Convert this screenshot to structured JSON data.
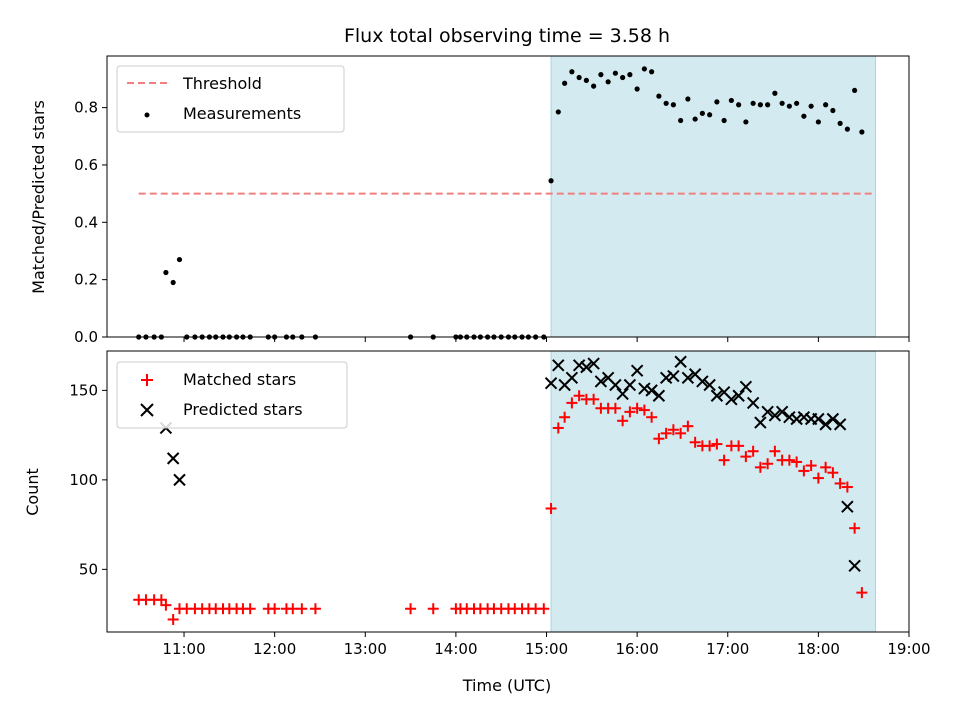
{
  "chart_data": {
    "title": "Flux total observing time = 3.58 h",
    "xlabel": "Time (UTC)",
    "xlim_hours": [
      10.15,
      19.0
    ],
    "xticks": [
      {
        "label": "11:00",
        "hour": 11
      },
      {
        "label": "12:00",
        "hour": 12
      },
      {
        "label": "13:00",
        "hour": 13
      },
      {
        "label": "14:00",
        "hour": 14
      },
      {
        "label": "15:00",
        "hour": 15
      },
      {
        "label": "16:00",
        "hour": 16
      },
      {
        "label": "17:00",
        "hour": 17
      },
      {
        "label": "18:00",
        "hour": 18
      },
      {
        "label": "19:00",
        "hour": 19
      }
    ],
    "shaded_interval_hours": [
      15.05,
      18.63
    ],
    "shade_color": "#d2eaf0",
    "panels": [
      {
        "type": "scatter",
        "ylabel": "Matched/Predicted stars",
        "ylim": [
          0,
          0.98
        ],
        "yticks": [
          {
            "label": "0.0",
            "value": 0.0
          },
          {
            "label": "0.2",
            "value": 0.2
          },
          {
            "label": "0.4",
            "value": 0.4
          },
          {
            "label": "0.6",
            "value": 0.6
          },
          {
            "label": "0.8",
            "value": 0.8
          }
        ],
        "legend": [
          "Threshold",
          "Measurements"
        ],
        "threshold": {
          "value": 0.5,
          "x_range": [
            10.5,
            18.63
          ],
          "color": "#f08080"
        },
        "series": [
          {
            "name": "Measurements",
            "marker": "dot",
            "color": "#000000",
            "points": [
              [
                10.5,
                0.0
              ],
              [
                10.58,
                0.0
              ],
              [
                10.67,
                0.0
              ],
              [
                10.75,
                0.0
              ],
              [
                10.8,
                0.225
              ],
              [
                10.88,
                0.19
              ],
              [
                10.95,
                0.27
              ],
              [
                11.03,
                0.0
              ],
              [
                11.12,
                0.0
              ],
              [
                11.2,
                0.0
              ],
              [
                11.28,
                0.0
              ],
              [
                11.35,
                0.0
              ],
              [
                11.43,
                0.0
              ],
              [
                11.5,
                0.0
              ],
              [
                11.58,
                0.0
              ],
              [
                11.65,
                0.0
              ],
              [
                11.73,
                0.0
              ],
              [
                11.93,
                0.0
              ],
              [
                12.0,
                0.0
              ],
              [
                12.13,
                0.0
              ],
              [
                12.2,
                0.0
              ],
              [
                12.3,
                0.0
              ],
              [
                12.45,
                0.0
              ],
              [
                13.5,
                0.0
              ],
              [
                13.75,
                0.0
              ],
              [
                14.0,
                0.0
              ],
              [
                14.05,
                0.0
              ],
              [
                14.12,
                0.0
              ],
              [
                14.2,
                0.0
              ],
              [
                14.27,
                0.0
              ],
              [
                14.35,
                0.0
              ],
              [
                14.42,
                0.0
              ],
              [
                14.5,
                0.0
              ],
              [
                14.58,
                0.0
              ],
              [
                14.65,
                0.0
              ],
              [
                14.73,
                0.0
              ],
              [
                14.8,
                0.0
              ],
              [
                14.88,
                0.0
              ],
              [
                14.97,
                0.0
              ],
              [
                15.05,
                0.545
              ],
              [
                15.13,
                0.785
              ],
              [
                15.2,
                0.885
              ],
              [
                15.28,
                0.925
              ],
              [
                15.36,
                0.905
              ],
              [
                15.44,
                0.895
              ],
              [
                15.52,
                0.875
              ],
              [
                15.6,
                0.915
              ],
              [
                15.68,
                0.89
              ],
              [
                15.76,
                0.92
              ],
              [
                15.84,
                0.905
              ],
              [
                15.92,
                0.915
              ],
              [
                16.0,
                0.865
              ],
              [
                16.08,
                0.935
              ],
              [
                16.16,
                0.925
              ],
              [
                16.24,
                0.84
              ],
              [
                16.32,
                0.815
              ],
              [
                16.4,
                0.81
              ],
              [
                16.48,
                0.755
              ],
              [
                16.56,
                0.83
              ],
              [
                16.64,
                0.76
              ],
              [
                16.72,
                0.78
              ],
              [
                16.8,
                0.775
              ],
              [
                16.88,
                0.82
              ],
              [
                16.96,
                0.755
              ],
              [
                17.04,
                0.825
              ],
              [
                17.12,
                0.81
              ],
              [
                17.2,
                0.75
              ],
              [
                17.28,
                0.815
              ],
              [
                17.36,
                0.81
              ],
              [
                17.44,
                0.81
              ],
              [
                17.52,
                0.85
              ],
              [
                17.6,
                0.815
              ],
              [
                17.68,
                0.805
              ],
              [
                17.76,
                0.815
              ],
              [
                17.84,
                0.77
              ],
              [
                17.92,
                0.805
              ],
              [
                18.0,
                0.75
              ],
              [
                18.08,
                0.81
              ],
              [
                18.16,
                0.79
              ],
              [
                18.24,
                0.745
              ],
              [
                18.32,
                0.725
              ],
              [
                18.4,
                0.86
              ],
              [
                18.48,
                0.715
              ]
            ]
          }
        ]
      },
      {
        "type": "scatter",
        "ylabel": "Count",
        "ylim": [
          15,
          172
        ],
        "yticks": [
          {
            "label": "50",
            "value": 50
          },
          {
            "label": "100",
            "value": 100
          },
          {
            "label": "150",
            "value": 150
          }
        ],
        "legend": [
          "Matched stars",
          "Predicted stars"
        ],
        "series": [
          {
            "name": "Matched stars",
            "marker": "plus",
            "color": "#ff0000",
            "points": [
              [
                10.5,
                33
              ],
              [
                10.58,
                33
              ],
              [
                10.67,
                33
              ],
              [
                10.75,
                33
              ],
              [
                10.8,
                30
              ],
              [
                10.88,
                22
              ],
              [
                10.95,
                28
              ],
              [
                11.03,
                28
              ],
              [
                11.12,
                28
              ],
              [
                11.2,
                28
              ],
              [
                11.28,
                28
              ],
              [
                11.35,
                28
              ],
              [
                11.43,
                28
              ],
              [
                11.5,
                28
              ],
              [
                11.58,
                28
              ],
              [
                11.65,
                28
              ],
              [
                11.73,
                28
              ],
              [
                11.93,
                28
              ],
              [
                12.0,
                28
              ],
              [
                12.13,
                28
              ],
              [
                12.2,
                28
              ],
              [
                12.3,
                28
              ],
              [
                12.45,
                28
              ],
              [
                13.5,
                28
              ],
              [
                13.75,
                28
              ],
              [
                14.0,
                28
              ],
              [
                14.05,
                28
              ],
              [
                14.12,
                28
              ],
              [
                14.2,
                28
              ],
              [
                14.27,
                28
              ],
              [
                14.35,
                28
              ],
              [
                14.42,
                28
              ],
              [
                14.5,
                28
              ],
              [
                14.58,
                28
              ],
              [
                14.65,
                28
              ],
              [
                14.73,
                28
              ],
              [
                14.8,
                28
              ],
              [
                14.88,
                28
              ],
              [
                14.97,
                28
              ],
              [
                15.05,
                84
              ],
              [
                15.13,
                129
              ],
              [
                15.2,
                135
              ],
              [
                15.28,
                143
              ],
              [
                15.36,
                147
              ],
              [
                15.44,
                145
              ],
              [
                15.52,
                145
              ],
              [
                15.6,
                140
              ],
              [
                15.68,
                140
              ],
              [
                15.76,
                140
              ],
              [
                15.84,
                133
              ],
              [
                15.92,
                138
              ],
              [
                16.0,
                140
              ],
              [
                16.08,
                139
              ],
              [
                16.16,
                135
              ],
              [
                16.24,
                123
              ],
              [
                16.32,
                126
              ],
              [
                16.4,
                128
              ],
              [
                16.48,
                126
              ],
              [
                16.56,
                130
              ],
              [
                16.64,
                121
              ],
              [
                16.72,
                119
              ],
              [
                16.8,
                119
              ],
              [
                16.88,
                120
              ],
              [
                16.96,
                111
              ],
              [
                17.04,
                119
              ],
              [
                17.12,
                119
              ],
              [
                17.2,
                113
              ],
              [
                17.28,
                116
              ],
              [
                17.36,
                107
              ],
              [
                17.44,
                109
              ],
              [
                17.52,
                116
              ],
              [
                17.6,
                111
              ],
              [
                17.68,
                111
              ],
              [
                17.76,
                110
              ],
              [
                17.84,
                105
              ],
              [
                17.92,
                108
              ],
              [
                18.0,
                101
              ],
              [
                18.08,
                107
              ],
              [
                18.16,
                104
              ],
              [
                18.24,
                98
              ],
              [
                18.32,
                96
              ],
              [
                18.4,
                73
              ],
              [
                18.48,
                37
              ]
            ]
          },
          {
            "name": "Predicted stars",
            "marker": "x",
            "color": "#000000",
            "points": [
              [
                10.8,
                129
              ],
              [
                10.88,
                112
              ],
              [
                10.95,
                100
              ],
              [
                15.05,
                154
              ],
              [
                15.13,
                164
              ],
              [
                15.2,
                153
              ],
              [
                15.28,
                157
              ],
              [
                15.36,
                164
              ],
              [
                15.44,
                163
              ],
              [
                15.52,
                165
              ],
              [
                15.6,
                155
              ],
              [
                15.68,
                157
              ],
              [
                15.76,
                153
              ],
              [
                15.84,
                148
              ],
              [
                15.92,
                153
              ],
              [
                16.0,
                161
              ],
              [
                16.08,
                151
              ],
              [
                16.16,
                150
              ],
              [
                16.24,
                147
              ],
              [
                16.32,
                157
              ],
              [
                16.4,
                158
              ],
              [
                16.48,
                166
              ],
              [
                16.56,
                157
              ],
              [
                16.64,
                159
              ],
              [
                16.72,
                155
              ],
              [
                16.8,
                153
              ],
              [
                16.88,
                147
              ],
              [
                16.96,
                149
              ],
              [
                17.04,
                145
              ],
              [
                17.12,
                147
              ],
              [
                17.2,
                152
              ],
              [
                17.28,
                143
              ],
              [
                17.36,
                132
              ],
              [
                17.44,
                138
              ],
              [
                17.52,
                136
              ],
              [
                17.6,
                138
              ],
              [
                17.68,
                135
              ],
              [
                17.76,
                134
              ],
              [
                17.84,
                135
              ],
              [
                17.92,
                134
              ],
              [
                18.0,
                134
              ],
              [
                18.08,
                131
              ],
              [
                18.16,
                134
              ],
              [
                18.24,
                131
              ],
              [
                18.32,
                85
              ],
              [
                18.4,
                52
              ]
            ]
          }
        ]
      }
    ]
  }
}
